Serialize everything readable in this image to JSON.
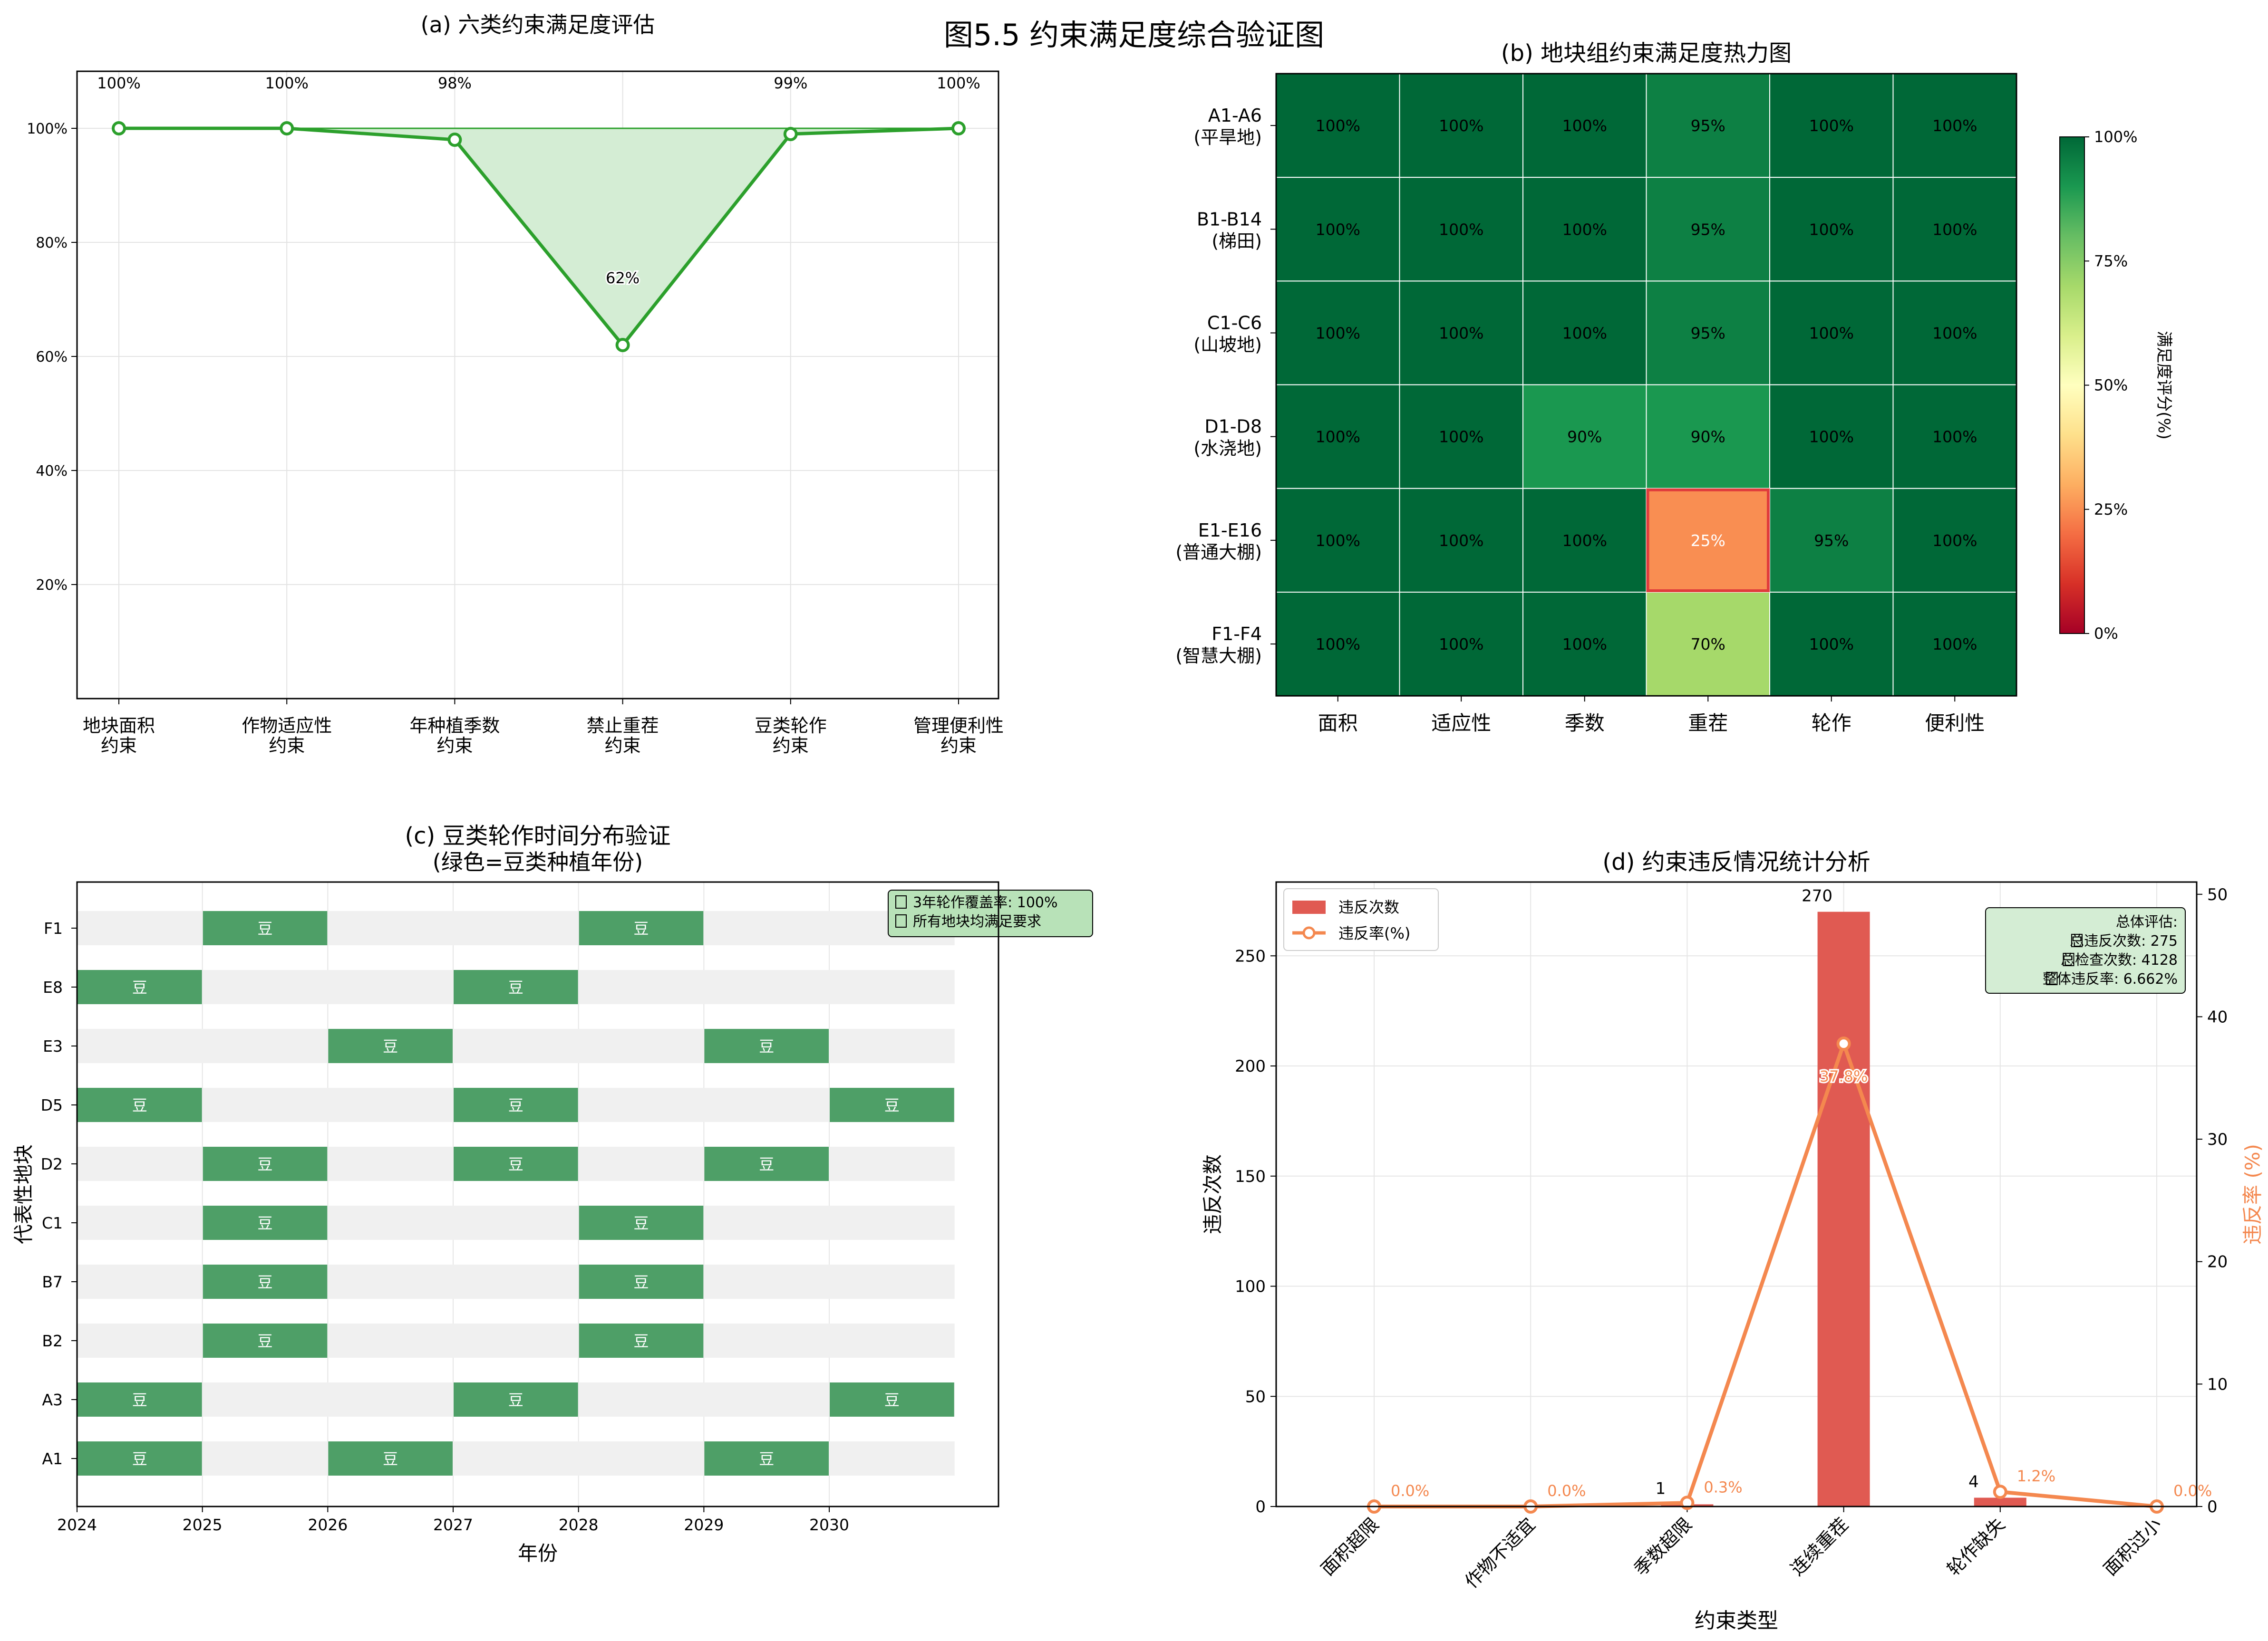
{
  "figure_title": "图5.5 约束满足度综合验证图",
  "chart_data": [
    {
      "id": "a",
      "type": "line",
      "title": "(a) 六类约束满足度评估",
      "categories": [
        "地块面积\n约束",
        "作物适应性\n约束",
        "年种植季数\n约束",
        "禁止重茬\n约束",
        "豆类轮作\n约束",
        "管理便利性\n约束"
      ],
      "values": [
        100,
        100,
        98,
        62,
        99,
        100
      ],
      "value_labels": [
        "100%",
        "100%",
        "98%",
        "62%",
        "99%",
        "100%"
      ],
      "y_ticks": [
        "20%",
        "40%",
        "60%",
        "80%",
        "100%"
      ],
      "ylim": [
        0,
        110
      ],
      "grid": true,
      "color": "#2ca02c",
      "fill_color": "#d4edd4"
    },
    {
      "id": "b",
      "type": "heatmap",
      "title": "(b) 地块组约束满足度热力图",
      "rows": [
        "A1-A6\n(平旱地)",
        "B1-B14\n(梯田)",
        "C1-C6\n(山坡地)",
        "D1-D8\n(水浇地)",
        "E1-E16\n(普通大棚)",
        "F1-F4\n(智慧大棚)"
      ],
      "columns": [
        "面积",
        "适应性",
        "季数",
        "重茬",
        "轮作",
        "便利性"
      ],
      "values": [
        [
          100,
          100,
          100,
          95,
          100,
          100
        ],
        [
          100,
          100,
          100,
          95,
          100,
          100
        ],
        [
          100,
          100,
          100,
          95,
          100,
          100
        ],
        [
          100,
          100,
          90,
          90,
          100,
          100
        ],
        [
          100,
          100,
          100,
          25,
          95,
          100
        ],
        [
          100,
          100,
          100,
          70,
          100,
          100
        ]
      ],
      "highlight_cell": [
        4,
        3
      ],
      "colorbar_label": "满足度评分(%)",
      "colorbar_ticks": [
        "0%",
        "25%",
        "50%",
        "75%",
        "100%"
      ],
      "colormap": "RdYlGn"
    },
    {
      "id": "c",
      "type": "gantt",
      "title": "(c) 豆类轮作时间分布验证",
      "subtitle": "(绿色=豆类种植年份)",
      "ylabel": "代表性地块",
      "xlabel": "年份",
      "x_ticks": [
        "2024",
        "2025",
        "2026",
        "2027",
        "2028",
        "2029",
        "2030"
      ],
      "xlim": [
        2024,
        2031.35
      ],
      "bar_label": "豆",
      "rows": [
        {
          "plot": "F1",
          "years": [
            2025,
            2028
          ]
        },
        {
          "plot": "E8",
          "years": [
            2024,
            2027
          ]
        },
        {
          "plot": "E3",
          "years": [
            2026,
            2029
          ]
        },
        {
          "plot": "D5",
          "years": [
            2024,
            2027,
            2030
          ]
        },
        {
          "plot": "D2",
          "years": [
            2025,
            2027,
            2029
          ]
        },
        {
          "plot": "C1",
          "years": [
            2025,
            2028
          ]
        },
        {
          "plot": "B7",
          "years": [
            2025,
            2028
          ]
        },
        {
          "plot": "B2",
          "years": [
            2025,
            2028
          ]
        },
        {
          "plot": "A3",
          "years": [
            2024,
            2027,
            2030
          ]
        },
        {
          "plot": "A1",
          "years": [
            2024,
            2026,
            2029
          ]
        }
      ],
      "legend": [
        "3年轮作覆盖率: 100%",
        "所有地块均满足要求"
      ],
      "bar_color": "#4e9f67",
      "track_color": "#f0f0f0"
    },
    {
      "id": "d",
      "type": "bar+line",
      "title": "(d) 约束违反情况统计分析",
      "xlabel": "约束类型",
      "ylabel": "违反次数",
      "y2label": "违反率 (%)",
      "categories": [
        "面积超限",
        "作物不适宜",
        "季数超限",
        "连续重茬",
        "轮作缺失",
        "面积过小"
      ],
      "bars": {
        "name": "违反次数",
        "values": [
          0,
          0,
          1,
          270,
          4,
          0
        ],
        "labels": [
          "",
          "",
          "1",
          "270",
          "4",
          ""
        ]
      },
      "line": {
        "name": "违反率(%)",
        "values": [
          0.0,
          0.0,
          0.3,
          37.8,
          1.2,
          0.0
        ],
        "labels": [
          "0.0%",
          "0.0%",
          "0.3%",
          "37.8%",
          "1.2%",
          "0.0%"
        ]
      },
      "y_ticks": [
        "0",
        "50",
        "100",
        "150",
        "200",
        "250"
      ],
      "y2_ticks": [
        "0",
        "10",
        "20",
        "30",
        "40",
        "50"
      ],
      "ylim": [
        0,
        283.5
      ],
      "y2lim": [
        0,
        51
      ],
      "summary": [
        "总体评估:",
        "总违反次数: 275",
        "总检查次数: 4128",
        "整体违反率: 6.662%"
      ],
      "bar_color": "#e05a52",
      "line_color": "#f4884f"
    }
  ]
}
